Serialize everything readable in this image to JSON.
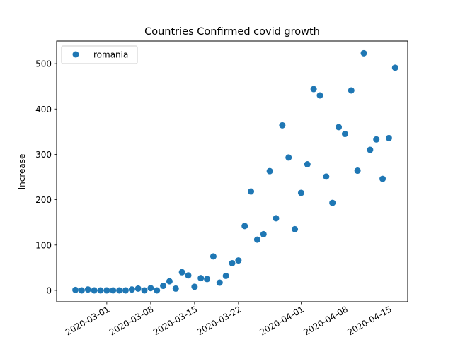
{
  "chart_data": {
    "type": "scatter",
    "title": "Countries Confirmed covid growth",
    "xlabel": "",
    "ylabel": "Increase",
    "legend": {
      "entries": [
        "romania"
      ],
      "placement": "top-left"
    },
    "grid": false,
    "xlim": [
      "2020-02-22",
      "2020-04-18"
    ],
    "ylim": [
      -25,
      550
    ],
    "xticks": [
      "2020-03-01",
      "2020-03-08",
      "2020-03-15",
      "2020-03-22",
      "2020-04-01",
      "2020-04-08",
      "2020-04-15"
    ],
    "yticks": [
      0,
      100,
      200,
      300,
      400,
      500
    ],
    "colors": {
      "series": "#1f77b4"
    },
    "series": [
      {
        "name": "romania",
        "x": [
          "2020-02-25",
          "2020-02-26",
          "2020-02-27",
          "2020-02-28",
          "2020-02-29",
          "2020-03-01",
          "2020-03-02",
          "2020-03-03",
          "2020-03-04",
          "2020-03-05",
          "2020-03-06",
          "2020-03-07",
          "2020-03-08",
          "2020-03-09",
          "2020-03-10",
          "2020-03-11",
          "2020-03-12",
          "2020-03-13",
          "2020-03-14",
          "2020-03-15",
          "2020-03-16",
          "2020-03-17",
          "2020-03-18",
          "2020-03-19",
          "2020-03-20",
          "2020-03-21",
          "2020-03-22",
          "2020-03-23",
          "2020-03-24",
          "2020-03-25",
          "2020-03-26",
          "2020-03-27",
          "2020-03-28",
          "2020-03-29",
          "2020-03-30",
          "2020-03-31",
          "2020-04-01",
          "2020-04-02",
          "2020-04-03",
          "2020-04-04",
          "2020-04-05",
          "2020-04-06",
          "2020-04-07",
          "2020-04-08",
          "2020-04-09",
          "2020-04-10",
          "2020-04-11",
          "2020-04-12",
          "2020-04-13",
          "2020-04-14",
          "2020-04-15",
          "2020-04-16"
        ],
        "y": [
          1,
          0,
          2,
          0,
          0,
          0,
          0,
          0,
          0,
          2,
          4,
          0,
          5,
          0,
          10,
          20,
          4,
          40,
          33,
          8,
          27,
          25,
          75,
          17,
          32,
          60,
          66,
          142,
          218,
          112,
          124,
          263,
          159,
          364,
          293,
          135,
          215,
          278,
          444,
          430,
          251,
          193,
          360,
          345,
          441,
          264,
          523,
          310,
          333,
          246,
          336,
          491
        ]
      }
    ]
  }
}
